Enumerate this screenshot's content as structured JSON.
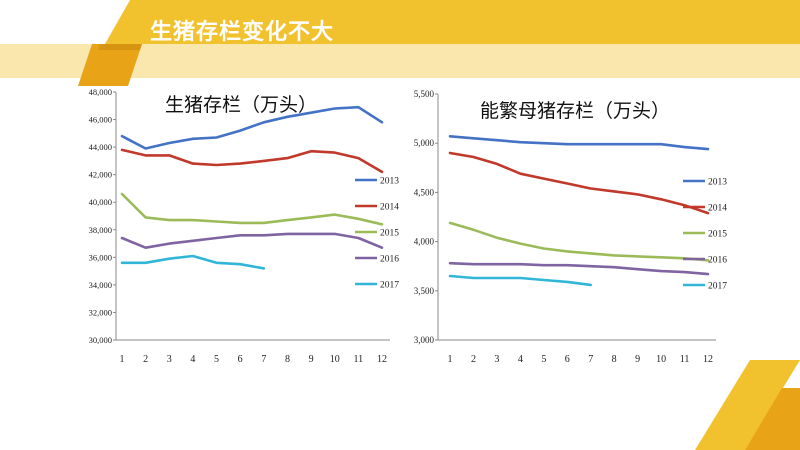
{
  "slide": {
    "title": "生猪存栏变化不大",
    "colors": {
      "accent_yellow": "#F2C12E",
      "accent_orange": "#E8A317",
      "dark_orange": "#C98A0E"
    }
  },
  "chart_data": [
    {
      "type": "line",
      "title": "生猪存栏（万头）",
      "x": [
        1,
        2,
        3,
        4,
        5,
        6,
        7,
        8,
        9,
        10,
        11,
        12
      ],
      "ylim": [
        30000,
        48000
      ],
      "yticks": [
        30000,
        32000,
        34000,
        36000,
        38000,
        40000,
        42000,
        44000,
        46000,
        48000
      ],
      "ytick_labels": [
        "30,000",
        "32,000",
        "34,000",
        "36,000",
        "38,000",
        "40,000",
        "42,000",
        "44,000",
        "46,000",
        "48,000"
      ],
      "grid": false,
      "legend": "right",
      "series": [
        {
          "name": "2013",
          "color": "#4472C4",
          "values": [
            44800,
            43900,
            44300,
            44600,
            44700,
            45200,
            45800,
            46200,
            46500,
            46800,
            46900,
            45800
          ]
        },
        {
          "name": "2014",
          "color": "#C0392B",
          "values": [
            43800,
            43400,
            43400,
            42800,
            42700,
            42800,
            43000,
            43200,
            43700,
            43600,
            43200,
            42200
          ]
        },
        {
          "name": "2015",
          "color": "#9BBB59",
          "values": [
            40600,
            38900,
            38700,
            38700,
            38600,
            38500,
            38500,
            38700,
            38900,
            39100,
            38800,
            38400
          ]
        },
        {
          "name": "2016",
          "color": "#8064A2",
          "values": [
            37400,
            36700,
            37000,
            37200,
            37400,
            37600,
            37600,
            37700,
            37700,
            37700,
            37400,
            36700
          ]
        },
        {
          "name": "2017",
          "color": "#31B6D8",
          "values": [
            35600,
            35600,
            35900,
            36100,
            35600,
            35500,
            35200,
            null,
            null,
            null,
            null,
            null
          ]
        }
      ]
    },
    {
      "type": "line",
      "title": "能繁母猪存栏（万头）",
      "x": [
        1,
        2,
        3,
        4,
        5,
        6,
        7,
        8,
        9,
        10,
        11,
        12
      ],
      "ylim": [
        3000,
        5500
      ],
      "yticks": [
        3000,
        3500,
        4000,
        4500,
        5000,
        5500
      ],
      "ytick_labels": [
        "3,000",
        "3,500",
        "4,000",
        "4,500",
        "5,000",
        "5,500"
      ],
      "grid": false,
      "legend": "right",
      "series": [
        {
          "name": "2013",
          "color": "#4472C4",
          "values": [
            5070,
            5050,
            5030,
            5010,
            5000,
            4990,
            4990,
            4990,
            4990,
            4990,
            4960,
            4940
          ]
        },
        {
          "name": "2014",
          "color": "#C0392B",
          "values": [
            4900,
            4860,
            4790,
            4690,
            4640,
            4590,
            4540,
            4510,
            4480,
            4430,
            4370,
            4290
          ]
        },
        {
          "name": "2015",
          "color": "#9BBB59",
          "values": [
            4190,
            4120,
            4040,
            3980,
            3930,
            3900,
            3880,
            3860,
            3850,
            3840,
            3830,
            3810
          ]
        },
        {
          "name": "2016",
          "color": "#8064A2",
          "values": [
            3780,
            3770,
            3770,
            3770,
            3760,
            3760,
            3750,
            3740,
            3720,
            3700,
            3690,
            3670
          ]
        },
        {
          "name": "2017",
          "color": "#31B6D8",
          "values": [
            3650,
            3630,
            3630,
            3630,
            3610,
            3590,
            3560,
            null,
            null,
            null,
            null,
            null
          ]
        }
      ]
    }
  ]
}
